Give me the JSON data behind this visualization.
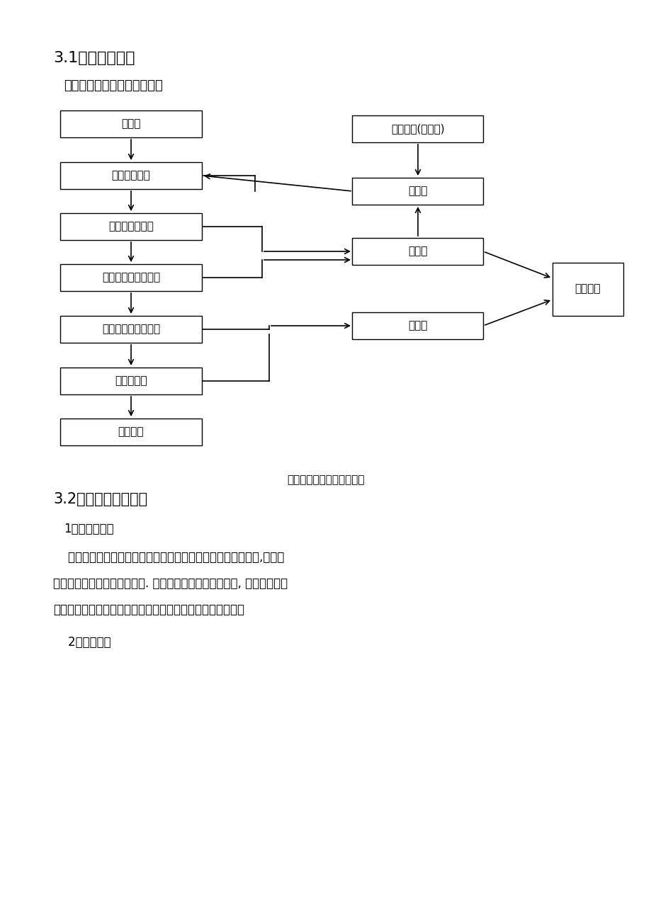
{
  "title_section": "3.1施工工艺流程",
  "subtitle": "详见地下连续墙施工工艺流程",
  "caption": "地下连续墙施工工艺流程图",
  "section2_title": "3.2施工方法要点说明",
  "point1_title": "1、导墙的作用",
  "point1_line1": "    导墙是控制地下连续墙各项指标的基准，它起着支护槽口土体,承受地",
  "point1_line2": "面荷载和稳定泥浆液面的作用. 对于地质情况比较好的地方, 可以直接施作",
  "point1_line3": "导墙，对于松散层可通过地表注浆进行地基加固及防渗堵漏。",
  "point2_title": "    2、导墙设计",
  "bg_color": "#ffffff",
  "text_color": "#000000",
  "left_labels": [
    "筑导墙",
    "挖槽（冲槽）",
    "清槽及清刷接头",
    "吊放接头管及钢筋笼",
    "浇灌架就位插入导管",
    "浇灌水下砼",
    "拔接头管"
  ],
  "right_labels": [
    "泥浆制备(新浆池)",
    "循环池",
    "沉淀池",
    "废浆池",
    "泥浆排放"
  ]
}
